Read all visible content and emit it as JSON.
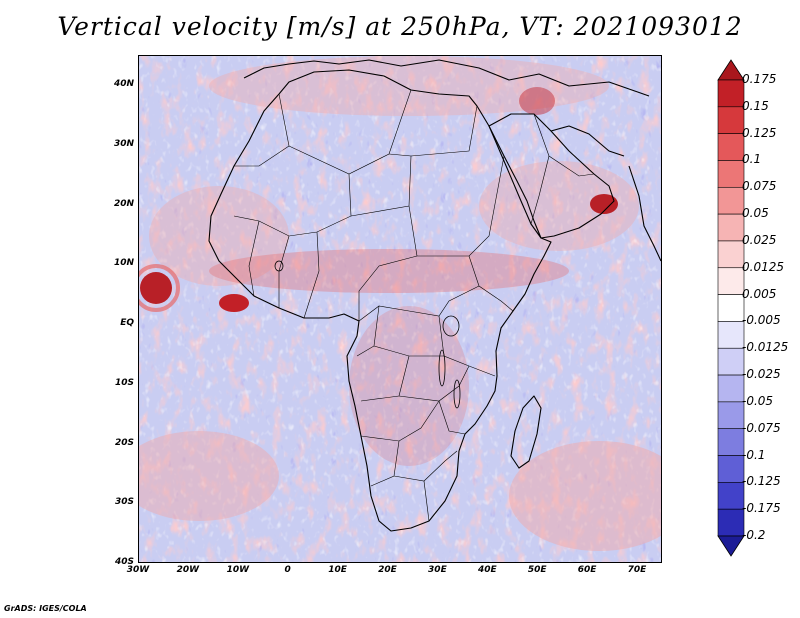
{
  "title": "Vertical velocity [m/s] at 250hPa, VT: 2021093012",
  "footer": "GrADS: IGES/COLA",
  "y_ticks": [
    "40N",
    "30N",
    "20N",
    "10N",
    "EQ",
    "10S",
    "20S",
    "30S",
    "40S"
  ],
  "x_ticks": [
    "30W",
    "20W",
    "10W",
    "0",
    "10E",
    "20E",
    "30E",
    "40E",
    "50E",
    "60E",
    "70E"
  ],
  "colorbar": {
    "labels": [
      "0.175",
      "0.15",
      "0.125",
      "0.1",
      "0.075",
      "0.05",
      "0.025",
      "0.0125",
      "0.005",
      "-0.005",
      "-0.0125",
      "-0.025",
      "-0.05",
      "-0.075",
      "-0.1",
      "-0.125",
      "-0.175",
      "-0.2"
    ],
    "colors": [
      "#a9171d",
      "#c22027",
      "#d6393c",
      "#e4585a",
      "#ec7676",
      "#f29696",
      "#f6b4b4",
      "#fad1d1",
      "#fdeaea",
      "#ffffff",
      "#e6e6fb",
      "#cfcff6",
      "#b5b5f0",
      "#9a9ae9",
      "#7d7de0",
      "#5f5fd6",
      "#4242c9",
      "#2c2cb5",
      "#1c1c96"
    ]
  },
  "colors": {
    "background_field": "#c9cdf2",
    "positive_band": "#f2a9a9",
    "strong_positive": "#b82027",
    "coastline": "#000000"
  }
}
